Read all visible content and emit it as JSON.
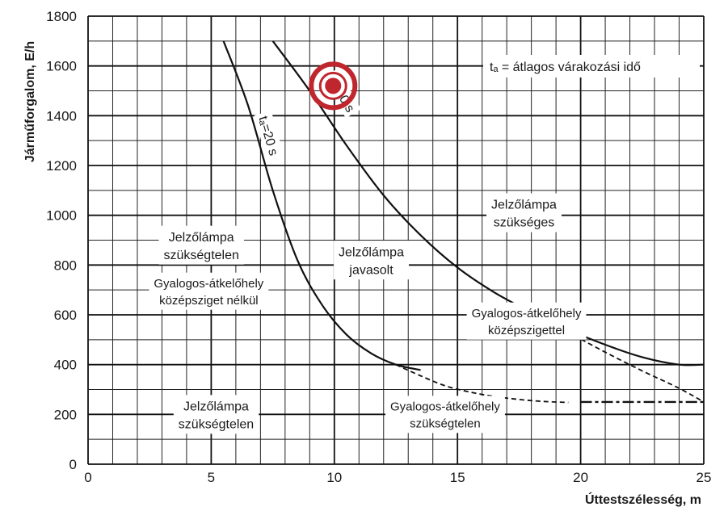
{
  "chart_data": {
    "type": "line",
    "xlabel": "Úttestszélesség, m",
    "ylabel": "Járműforgalom, E/h",
    "xlim": [
      0,
      25
    ],
    "ylim": [
      0,
      1800
    ],
    "xticks": [
      "0",
      "5",
      "10",
      "15",
      "20",
      "25"
    ],
    "yticks": [
      "0",
      "200",
      "400",
      "600",
      "800",
      "1000",
      "1200",
      "1400",
      "1600",
      "1800"
    ],
    "grid": true,
    "legend_note": "tₐ = átlagos várakozási idő",
    "series": [
      {
        "name": "tₐ=20 s",
        "style": "solid",
        "x": [
          5.5,
          6.5,
          7.5,
          8.5,
          9.5,
          10.5,
          11.5,
          12.5,
          13.5
        ],
        "y": [
          1700,
          1440,
          1100,
          820,
          640,
          520,
          445,
          400,
          378
        ]
      },
      {
        "name": "tₐ=40 s",
        "style": "solid",
        "x": [
          7.5,
          9,
          10.5,
          12,
          13.5,
          15,
          16.5,
          18,
          19.5,
          21,
          22.5,
          24,
          25
        ],
        "y": [
          1700,
          1500,
          1280,
          1080,
          920,
          790,
          690,
          610,
          540,
          480,
          430,
          400,
          400
        ]
      },
      {
        "name": "",
        "style": "dashed",
        "x": [
          12.5,
          13.5,
          14.5,
          15.5,
          16.5,
          17.5,
          18.5,
          19.5
        ],
        "y": [
          400,
          355,
          315,
          290,
          272,
          260,
          252,
          248
        ]
      },
      {
        "name": "",
        "style": "dashed",
        "x": [
          18,
          19.5,
          21,
          22.5,
          24,
          25
        ],
        "y": [
          610,
          530,
          450,
          375,
          305,
          250
        ]
      },
      {
        "name": "",
        "style": "dashdot",
        "x": [
          20,
          25
        ],
        "y": [
          250,
          250
        ]
      }
    ],
    "annotations": [
      {
        "lines": [
          "Jelzőlámpa",
          "szükségtelen"
        ],
        "x": 4.6,
        "y": 880,
        "size": "region"
      },
      {
        "lines": [
          "Gyalogos-átkelőhely",
          "középsziget nélkül"
        ],
        "x": 4.9,
        "y": 695,
        "size": "region-sm"
      },
      {
        "lines": [
          "Jelzőlámpa",
          "javasolt"
        ],
        "x": 11.5,
        "y": 820,
        "size": "region"
      },
      {
        "lines": [
          "Jelzőlámpa",
          "szükséges"
        ],
        "x": 17.7,
        "y": 1010,
        "size": "region"
      },
      {
        "lines": [
          "Gyalogos-átkelőhely",
          "középszigettel"
        ],
        "x": 17.8,
        "y": 575,
        "size": "region-sm"
      },
      {
        "lines": [
          "Jelzőlámpa",
          "szükségtelen"
        ],
        "x": 5.2,
        "y": 200,
        "size": "region"
      },
      {
        "lines": [
          "Gyalogos-átkelőhely",
          "szükségtelen"
        ],
        "x": 14.5,
        "y": 200,
        "size": "region-sm"
      }
    ],
    "curve_labels": [
      {
        "text": "tₐ=20 s",
        "x": 7.35,
        "y": 1320,
        "angle": 74
      },
      {
        "text": "tₐ=40 s",
        "x": 10.3,
        "y": 1490,
        "angle": 60
      }
    ],
    "marker": {
      "x": 9.95,
      "y": 1520,
      "color": "#c0262e"
    }
  }
}
